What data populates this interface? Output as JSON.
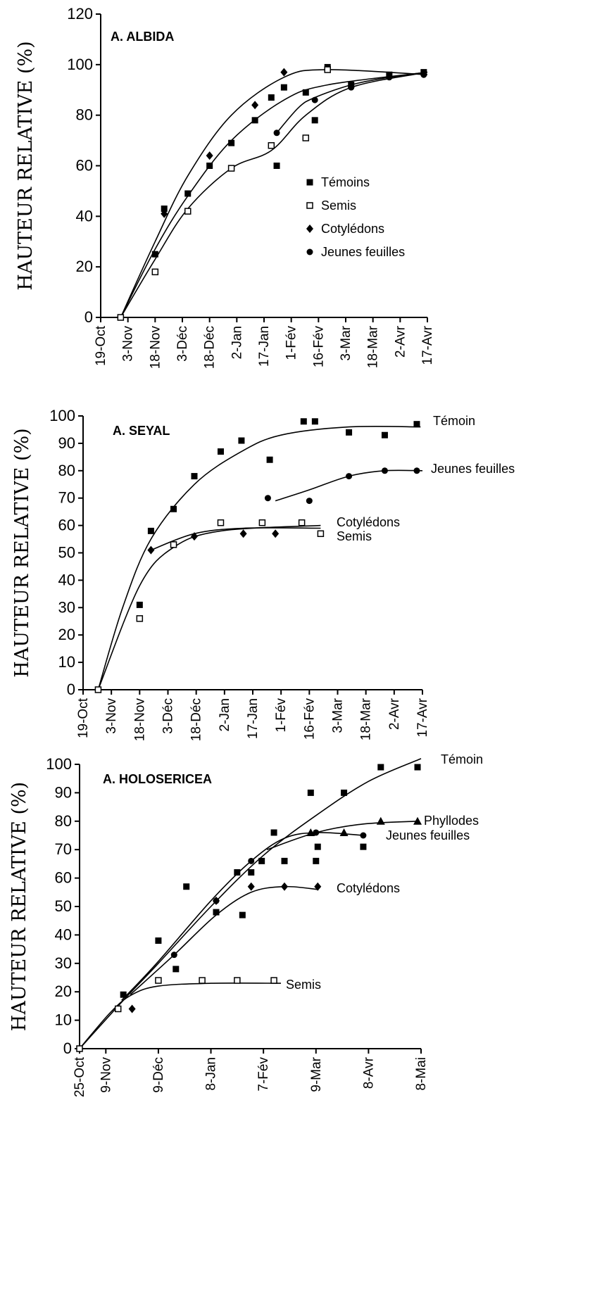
{
  "chart_data": [
    {
      "type": "scatter",
      "title": "A. ALBIDA",
      "ylabel": "HAUTEUR RELATIVE (%)",
      "xlabel": "",
      "ylim": [
        0,
        120
      ],
      "y_ticks": [
        0,
        20,
        40,
        60,
        80,
        100,
        120
      ],
      "x_tick_labels": [
        "19-Oct",
        "3-Nov",
        "18-Nov",
        "3-Déc",
        "18-Déc",
        "2-Jan",
        "17-Jan",
        "1-Fév",
        "16-Fév",
        "3-Mar",
        "18-Mar",
        "2-Avr",
        "17-Avr"
      ],
      "legend_position": "right",
      "series": [
        {
          "name": "Témoins",
          "marker": "filled-square",
          "points": [
            [
              "30-Oct",
              0
            ],
            [
              "18-Nov",
              25
            ],
            [
              "23-Nov",
              43
            ],
            [
              "6-Déc",
              49
            ],
            [
              "18-Déc",
              60
            ],
            [
              "30-Dec",
              69
            ],
            [
              "12-Jan",
              78
            ],
            [
              "21-Jan",
              87
            ],
            [
              "24-Jan",
              60
            ],
            [
              "28-Jan",
              91
            ],
            [
              "9-Fév",
              89
            ],
            [
              "14-Fév",
              78
            ],
            [
              "21-Fév",
              99
            ],
            [
              "6-Mar",
              92
            ],
            [
              "27-Mar",
              96
            ],
            [
              "15-Avr",
              97
            ]
          ]
        },
        {
          "name": "Semis",
          "marker": "open-square",
          "points": [
            [
              "30-Oct",
              0
            ],
            [
              "18-Nov",
              18
            ],
            [
              "6-Déc",
              42
            ],
            [
              "30-Dec",
              59
            ],
            [
              "21-Jan",
              68
            ],
            [
              "9-Fév",
              71
            ],
            [
              "21-Fév",
              98
            ]
          ]
        },
        {
          "name": "Cotylédons",
          "marker": "filled-diamond",
          "points": [
            [
              "23-Nov",
              41
            ],
            [
              "18-Déc",
              64
            ],
            [
              "12-Jan",
              84
            ],
            [
              "28-Jan",
              97
            ]
          ]
        },
        {
          "name": "Jeunes feuilles",
          "marker": "filled-circle",
          "points": [
            [
              "24-Jan",
              73
            ],
            [
              "14-Fév",
              86
            ],
            [
              "6-Mar",
              91
            ],
            [
              "27-Mar",
              95
            ],
            [
              "15-Avr",
              96
            ]
          ]
        }
      ]
    },
    {
      "type": "scatter",
      "title": "A. SEYAL",
      "ylabel": "HAUTEUR RELATIVE (%)",
      "xlabel": "",
      "ylim": [
        0,
        100
      ],
      "y_ticks": [
        0,
        10,
        20,
        30,
        40,
        50,
        60,
        70,
        80,
        90,
        100
      ],
      "x_tick_labels": [
        "19-Oct",
        "3-Nov",
        "18-Nov",
        "3-Déc",
        "18-Déc",
        "2-Jan",
        "17-Jan",
        "1-Fév",
        "16-Fév",
        "3-Mar",
        "18-Mar",
        "2-Avr",
        "17-Avr"
      ],
      "legend_position": "curve labels at right",
      "series": [
        {
          "name": "Témoin",
          "marker": "filled-square",
          "points": [
            [
              "27-Oct",
              0
            ],
            [
              "18-Nov",
              31
            ],
            [
              "24-Nov",
              58
            ],
            [
              "6-Déc",
              66
            ],
            [
              "17-Déc",
              78
            ],
            [
              "31-Dec",
              87
            ],
            [
              "11-Jan",
              91
            ],
            [
              "26-Jan",
              84
            ],
            [
              "13-Fév",
              98
            ],
            [
              "19-Fév",
              98
            ],
            [
              "9-Mar",
              94
            ],
            [
              "28-Mar",
              93
            ],
            [
              "14-Avr",
              97
            ]
          ]
        },
        {
          "name": "Jeunes feuilles",
          "marker": "filled-circle",
          "points": [
            [
              "25-Jan",
              70
            ],
            [
              "16-Fév",
              69
            ],
            [
              "9-Mar",
              78
            ],
            [
              "28-Mar",
              80
            ],
            [
              "14-Avr",
              80
            ]
          ]
        },
        {
          "name": "Cotylédons",
          "marker": "filled-diamond",
          "points": [
            [
              "24-Nov",
              51
            ],
            [
              "17-Déc",
              56
            ],
            [
              "12-Jan",
              57
            ],
            [
              "29-Jan",
              57
            ]
          ]
        },
        {
          "name": "Semis",
          "marker": "open-square",
          "points": [
            [
              "27-Oct",
              0
            ],
            [
              "18-Nov",
              26
            ],
            [
              "6-Déc",
              53
            ],
            [
              "31-Dec",
              61
            ],
            [
              "22-Jan",
              61
            ],
            [
              "12-Fév",
              61
            ],
            [
              "22-Fév",
              57
            ]
          ]
        }
      ]
    },
    {
      "type": "scatter",
      "title": "A. HOLOSERICEA",
      "ylabel": "HAUTEUR RELATIVE (%)",
      "xlabel": "",
      "ylim": [
        0,
        100
      ],
      "y_ticks": [
        0,
        10,
        20,
        30,
        40,
        50,
        60,
        70,
        80,
        90,
        100
      ],
      "x_tick_labels": [
        "25-Oct",
        "9-Nov",
        "9-Déc",
        "8-Jan",
        "7-Fév",
        "9-Mar",
        "8-Avr",
        "8-Mai"
      ],
      "legend_position": "curve labels at right",
      "series": [
        {
          "name": "Témoin",
          "marker": "filled-square",
          "points": [
            [
              "25-Oct",
              0
            ],
            [
              "19-Nov",
              19
            ],
            [
              "9-Déc",
              38
            ],
            [
              "19-Déc",
              28
            ],
            [
              "25-Déc",
              57
            ],
            [
              "11-Jan",
              48
            ],
            [
              "23-Jan",
              62
            ],
            [
              "26-Jan",
              47
            ],
            [
              "31-Jan",
              62
            ],
            [
              "6-Fév",
              66
            ],
            [
              "13-Fév",
              76
            ],
            [
              "19-Fév",
              66
            ],
            [
              "6-Mar",
              90
            ],
            [
              "9-Mar",
              66
            ],
            [
              "10-Mar",
              71
            ],
            [
              "25-Mar",
              90
            ],
            [
              "5-Avr",
              71
            ],
            [
              "15-Avr",
              99
            ],
            [
              "6-Mai",
              99
            ]
          ]
        },
        {
          "name": "Phyllodes",
          "marker": "filled-triangle",
          "points": [
            [
              "6-Mar",
              76
            ],
            [
              "25-Mar",
              76
            ],
            [
              "15-Avr",
              80
            ],
            [
              "6-Mai",
              80
            ]
          ]
        },
        {
          "name": "Jeunes feuilles",
          "marker": "filled-circle",
          "points": [
            [
              "18-Déc",
              33
            ],
            [
              "11-Jan",
              52
            ],
            [
              "31-Jan",
              66
            ],
            [
              "9-Mar",
              76
            ],
            [
              "5-Avr",
              75
            ]
          ]
        },
        {
          "name": "Cotylédons",
          "marker": "filled-diamond",
          "points": [
            [
              "24-Nov",
              14
            ],
            [
              "11-Jan",
              52
            ],
            [
              "31-Jan",
              57
            ],
            [
              "19-Fév",
              57
            ],
            [
              "10-Mar",
              57
            ]
          ]
        },
        {
          "name": "Semis",
          "marker": "open-square",
          "points": [
            [
              "25-Oct",
              0
            ],
            [
              "16-Nov",
              14
            ],
            [
              "9-Déc",
              24
            ],
            [
              "3-Jan",
              24
            ],
            [
              "23-Jan",
              24
            ],
            [
              "13-Fév",
              24
            ]
          ]
        }
      ]
    }
  ]
}
